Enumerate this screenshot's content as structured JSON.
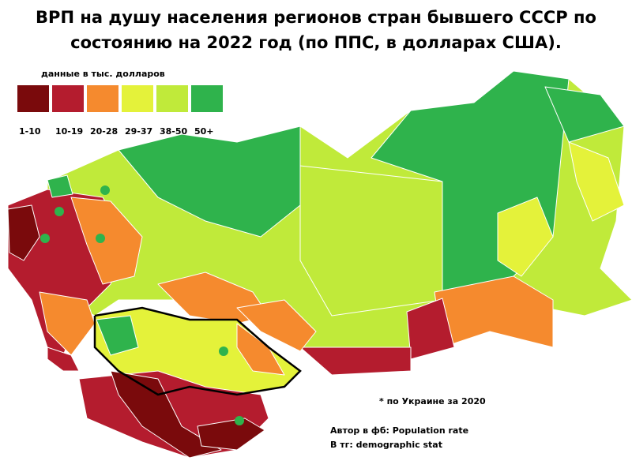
{
  "title": "ВРП на душу населения регионов стран бывшего СССР по состоянию на 2022 год (по ППС, в долларах США).",
  "legend": {
    "title": "данные в тыс. долларов",
    "items": [
      {
        "label": "1-10",
        "color": "#7a0a0c"
      },
      {
        "label": "10-19",
        "color": "#b41c2e"
      },
      {
        "label": "20-28",
        "color": "#f58a2e"
      },
      {
        "label": "29-37",
        "color": "#e4f23a"
      },
      {
        "label": "38-50",
        "color": "#c0ea3a"
      },
      {
        "label": "50+",
        "color": "#2fb34c"
      }
    ]
  },
  "notes": [
    "* по Украине за 2020"
  ],
  "credits": [
    "Автор в фб: Population rate",
    "В тг: demographic stat"
  ]
}
